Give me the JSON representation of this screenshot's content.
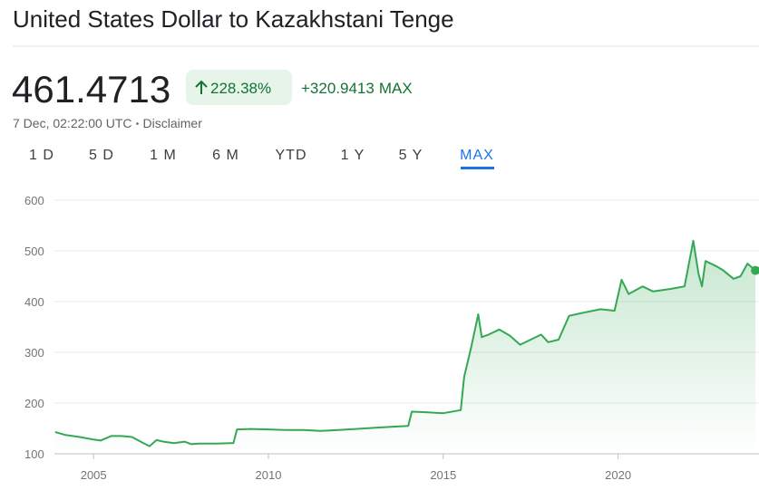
{
  "header": {
    "title": "United States Dollar to Kazakhstani Tenge"
  },
  "quote": {
    "price": "461.4713",
    "change_pct": "228.38%",
    "change_abs": "+320.9413",
    "period": "MAX",
    "timestamp": "7 Dec, 02:22:00 UTC",
    "disclaimer": "Disclaimer"
  },
  "tabs": [
    "1 D",
    "5 D",
    "1 M",
    "6 M",
    "YTD",
    "1 Y",
    "5 Y",
    "MAX"
  ],
  "chart_data": {
    "type": "line",
    "color": "#34a853",
    "x": [
      2003.9,
      2004.2,
      2004.6,
      2005.0,
      2005.2,
      2005.5,
      2005.8,
      2006.1,
      2006.4,
      2006.6,
      2006.8,
      2007.0,
      2007.3,
      2007.6,
      2007.8,
      2008.0,
      2008.5,
      2009.0,
      2009.1,
      2009.5,
      2010.0,
      2010.5,
      2011.0,
      2011.5,
      2012.0,
      2012.5,
      2013.0,
      2013.5,
      2014.0,
      2014.1,
      2014.5,
      2015.0,
      2015.5,
      2015.6,
      2015.8,
      2016.0,
      2016.1,
      2016.3,
      2016.6,
      2016.9,
      2017.2,
      2017.5,
      2017.8,
      2018.0,
      2018.3,
      2018.6,
      2019.0,
      2019.5,
      2019.9,
      2020.1,
      2020.3,
      2020.7,
      2021.0,
      2021.5,
      2021.9,
      2022.15,
      2022.3,
      2022.4,
      2022.5,
      2022.8,
      2023.0,
      2023.3,
      2023.5,
      2023.7,
      2023.93
    ],
    "values": [
      143,
      137,
      133,
      128,
      126,
      135,
      135,
      133,
      122,
      115,
      127,
      124,
      121,
      124,
      119,
      120,
      120,
      121,
      148,
      149,
      148,
      147,
      147,
      145,
      147,
      149,
      151,
      153,
      155,
      183,
      182,
      180,
      186,
      252,
      310,
      375,
      330,
      335,
      345,
      333,
      315,
      325,
      335,
      320,
      325,
      372,
      378,
      385,
      382,
      443,
      415,
      430,
      420,
      425,
      430,
      520,
      455,
      430,
      480,
      470,
      462,
      445,
      450,
      475,
      461.4713
    ],
    "xlim": [
      2003.88,
      2024.03
    ],
    "xticks": [
      2005,
      2010,
      2015,
      2020
    ],
    "ylim": [
      100,
      600
    ],
    "yticks": [
      100,
      200,
      300,
      400,
      500,
      600
    ],
    "grid": true
  }
}
